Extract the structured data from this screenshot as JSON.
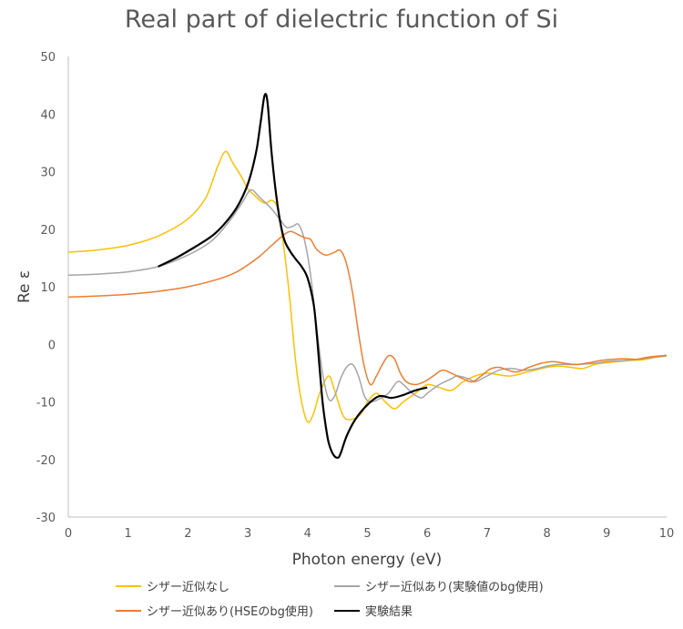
{
  "chart_data": {
    "type": "line",
    "title": "Real part of dielectric function of Si",
    "xlabel": "Photon energy (eV)",
    "ylabel": "Re ε",
    "xlim": [
      0,
      10
    ],
    "ylim": [
      -30,
      50
    ],
    "x_ticks": [
      0,
      1,
      2,
      3,
      4,
      5,
      6,
      7,
      8,
      9,
      10
    ],
    "y_ticks": [
      -30,
      -20,
      -10,
      0,
      10,
      20,
      30,
      40,
      50
    ],
    "grid": false,
    "legend_position": "bottom",
    "series": [
      {
        "name": "シザー近似なし",
        "color": "#FFC000",
        "points": [
          [
            0,
            16
          ],
          [
            0.5,
            16.4
          ],
          [
            1,
            17.2
          ],
          [
            1.5,
            18.8
          ],
          [
            2,
            21.8
          ],
          [
            2.3,
            25.5
          ],
          [
            2.5,
            31
          ],
          [
            2.63,
            33.5
          ],
          [
            2.75,
            31.5
          ],
          [
            2.9,
            29
          ],
          [
            3,
            27
          ],
          [
            3.1,
            26
          ],
          [
            3.2,
            25
          ],
          [
            3.3,
            24.5
          ],
          [
            3.4,
            25
          ],
          [
            3.5,
            23.5
          ],
          [
            3.6,
            17
          ],
          [
            3.7,
            8
          ],
          [
            3.8,
            -3
          ],
          [
            3.9,
            -10
          ],
          [
            4.0,
            -13.5
          ],
          [
            4.1,
            -12
          ],
          [
            4.2,
            -8.5
          ],
          [
            4.35,
            -5.5
          ],
          [
            4.45,
            -8
          ],
          [
            4.6,
            -12.5
          ],
          [
            4.75,
            -13
          ],
          [
            4.9,
            -12
          ],
          [
            5.0,
            -10
          ],
          [
            5.15,
            -8.5
          ],
          [
            5.3,
            -10
          ],
          [
            5.45,
            -11.2
          ],
          [
            5.6,
            -10
          ],
          [
            5.8,
            -8.5
          ],
          [
            6.0,
            -7
          ],
          [
            6.2,
            -7.5
          ],
          [
            6.4,
            -8
          ],
          [
            6.6,
            -6.5
          ],
          [
            6.8,
            -5.5
          ],
          [
            7.0,
            -5
          ],
          [
            7.2,
            -5.3
          ],
          [
            7.4,
            -5.5
          ],
          [
            7.6,
            -5
          ],
          [
            7.8,
            -4.5
          ],
          [
            8.0,
            -4
          ],
          [
            8.2,
            -3.8
          ],
          [
            8.4,
            -4
          ],
          [
            8.6,
            -4.2
          ],
          [
            8.8,
            -3.5
          ],
          [
            9.0,
            -3.2
          ],
          [
            9.2,
            -3
          ],
          [
            9.4,
            -2.8
          ],
          [
            9.6,
            -2.7
          ],
          [
            9.8,
            -2.3
          ],
          [
            10,
            -2
          ]
        ]
      },
      {
        "name": "シザー近似あり(実験値のbg使用)",
        "color": "#A5A5A5",
        "points": [
          [
            0,
            12
          ],
          [
            0.5,
            12.2
          ],
          [
            1,
            12.6
          ],
          [
            1.5,
            13.5
          ],
          [
            2,
            15.5
          ],
          [
            2.4,
            18
          ],
          [
            2.7,
            21.5
          ],
          [
            2.9,
            24.5
          ],
          [
            3.05,
            26.8
          ],
          [
            3.2,
            25.5
          ],
          [
            3.4,
            23.5
          ],
          [
            3.55,
            21.5
          ],
          [
            3.65,
            20.3
          ],
          [
            3.75,
            20.5
          ],
          [
            3.85,
            20.8
          ],
          [
            3.95,
            18
          ],
          [
            4.05,
            12
          ],
          [
            4.15,
            3
          ],
          [
            4.25,
            -5
          ],
          [
            4.35,
            -9.5
          ],
          [
            4.45,
            -9
          ],
          [
            4.55,
            -6
          ],
          [
            4.65,
            -4
          ],
          [
            4.75,
            -3.5
          ],
          [
            4.85,
            -5.5
          ],
          [
            4.95,
            -9
          ],
          [
            5.05,
            -10
          ],
          [
            5.2,
            -9.5
          ],
          [
            5.35,
            -8.5
          ],
          [
            5.5,
            -6.5
          ],
          [
            5.6,
            -7
          ],
          [
            5.75,
            -8.5
          ],
          [
            5.9,
            -9.3
          ],
          [
            6.0,
            -8.5
          ],
          [
            6.2,
            -7
          ],
          [
            6.4,
            -6
          ],
          [
            6.5,
            -5.5
          ],
          [
            6.7,
            -6
          ],
          [
            6.8,
            -6.5
          ],
          [
            7.0,
            -5.5
          ],
          [
            7.2,
            -4.5
          ],
          [
            7.4,
            -4.2
          ],
          [
            7.6,
            -4.5
          ],
          [
            7.8,
            -4.3
          ],
          [
            8.0,
            -3.8
          ],
          [
            8.2,
            -3.5
          ],
          [
            8.5,
            -3.5
          ],
          [
            8.8,
            -3.3
          ],
          [
            9.0,
            -3
          ],
          [
            9.3,
            -2.8
          ],
          [
            9.6,
            -2.5
          ],
          [
            10,
            -2
          ]
        ]
      },
      {
        "name": "シザー近似あり(HSEのbg使用)",
        "color": "#ED7D31",
        "points": [
          [
            0,
            8.2
          ],
          [
            0.5,
            8.4
          ],
          [
            1,
            8.7
          ],
          [
            1.5,
            9.2
          ],
          [
            2,
            10
          ],
          [
            2.5,
            11.3
          ],
          [
            2.8,
            12.5
          ],
          [
            3.0,
            13.8
          ],
          [
            3.2,
            15.3
          ],
          [
            3.4,
            17.2
          ],
          [
            3.6,
            19
          ],
          [
            3.72,
            19.6
          ],
          [
            3.85,
            19
          ],
          [
            3.95,
            18.5
          ],
          [
            4.05,
            18.2
          ],
          [
            4.15,
            16.5
          ],
          [
            4.3,
            15.5
          ],
          [
            4.45,
            16
          ],
          [
            4.55,
            16.3
          ],
          [
            4.65,
            14
          ],
          [
            4.75,
            9
          ],
          [
            4.85,
            2
          ],
          [
            4.95,
            -4
          ],
          [
            5.05,
            -7
          ],
          [
            5.15,
            -5.5
          ],
          [
            5.25,
            -3.5
          ],
          [
            5.35,
            -2
          ],
          [
            5.45,
            -2.5
          ],
          [
            5.55,
            -5
          ],
          [
            5.65,
            -6.5
          ],
          [
            5.8,
            -7
          ],
          [
            5.95,
            -6.5
          ],
          [
            6.1,
            -5.5
          ],
          [
            6.25,
            -4.5
          ],
          [
            6.4,
            -5
          ],
          [
            6.6,
            -6
          ],
          [
            6.75,
            -6.5
          ],
          [
            6.9,
            -5.5
          ],
          [
            7.05,
            -4.3
          ],
          [
            7.2,
            -4
          ],
          [
            7.35,
            -4.5
          ],
          [
            7.5,
            -4.8
          ],
          [
            7.7,
            -4
          ],
          [
            7.9,
            -3.3
          ],
          [
            8.1,
            -3
          ],
          [
            8.3,
            -3.3
          ],
          [
            8.5,
            -3.5
          ],
          [
            8.7,
            -3.2
          ],
          [
            8.9,
            -2.8
          ],
          [
            9.1,
            -2.6
          ],
          [
            9.3,
            -2.5
          ],
          [
            9.5,
            -2.6
          ],
          [
            9.7,
            -2.2
          ],
          [
            10,
            -1.9
          ]
        ]
      },
      {
        "name": "実験結果",
        "color": "#000000",
        "points": [
          [
            1.5,
            13.5
          ],
          [
            1.8,
            15
          ],
          [
            2.1,
            16.8
          ],
          [
            2.4,
            18.8
          ],
          [
            2.6,
            20.8
          ],
          [
            2.8,
            23.5
          ],
          [
            2.95,
            26.5
          ],
          [
            3.05,
            29.5
          ],
          [
            3.15,
            34
          ],
          [
            3.22,
            39
          ],
          [
            3.28,
            43.2
          ],
          [
            3.33,
            42
          ],
          [
            3.4,
            33
          ],
          [
            3.5,
            24
          ],
          [
            3.6,
            18.5
          ],
          [
            3.7,
            16.3
          ],
          [
            3.8,
            14.8
          ],
          [
            3.9,
            13.5
          ],
          [
            4.0,
            11.5
          ],
          [
            4.1,
            7
          ],
          [
            4.15,
            2
          ],
          [
            4.2,
            -4
          ],
          [
            4.25,
            -10
          ],
          [
            4.3,
            -14
          ],
          [
            4.35,
            -17
          ],
          [
            4.42,
            -19
          ],
          [
            4.5,
            -19.7
          ],
          [
            4.55,
            -19
          ],
          [
            4.65,
            -16
          ],
          [
            4.8,
            -13
          ],
          [
            5.0,
            -10.5
          ],
          [
            5.2,
            -9
          ],
          [
            5.4,
            -9.3
          ],
          [
            5.6,
            -8.8
          ],
          [
            5.8,
            -8
          ],
          [
            6.0,
            -7.5
          ]
        ]
      }
    ]
  }
}
